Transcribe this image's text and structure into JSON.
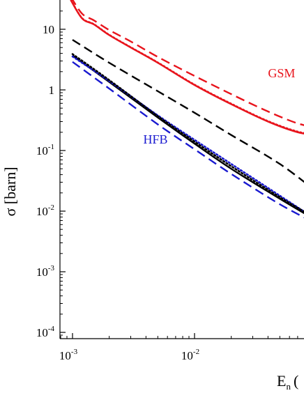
{
  "chart_data": {
    "type": "line",
    "xlabel": "E",
    "xlabel_sub": "n",
    "xlabel_tail": "(",
    "ylabel": "σ [barn]",
    "xscale": "log",
    "yscale": "log",
    "xlim": [
      0.00089,
      0.11
    ],
    "ylim": [
      9e-05,
      35
    ],
    "x_ticks": [
      {
        "value": 0.001,
        "base": "10",
        "exp": "-3"
      },
      {
        "value": 0.01,
        "base": "10",
        "exp": "-2"
      }
    ],
    "y_ticks": [
      {
        "value": 10,
        "base": "10",
        "exp": ""
      },
      {
        "value": 1,
        "base": "1",
        "exp": ""
      },
      {
        "value": 0.1,
        "base": "10",
        "exp": "-1"
      },
      {
        "value": 0.01,
        "base": "10",
        "exp": "-2"
      },
      {
        "value": 0.001,
        "base": "10",
        "exp": "-3"
      },
      {
        "value": 0.0001,
        "base": "10",
        "exp": "-4"
      }
    ],
    "annotations": [
      {
        "text": "GSM",
        "x": 0.04,
        "y": 1.6,
        "color": "#e8141c"
      },
      {
        "text": "HFB",
        "x": 0.0038,
        "y": 0.13,
        "color": "#1a1ad0"
      }
    ],
    "series": [
      {
        "color": "#e8141c",
        "style": "solid",
        "x": [
          0.00097,
          0.0012,
          0.0015,
          0.002,
          0.003,
          0.005,
          0.01,
          0.02,
          0.04,
          0.07,
          0.1
        ],
        "y": [
          30,
          15,
          12,
          8.0,
          5.0,
          2.8,
          1.2,
          0.58,
          0.3,
          0.2,
          0.18
        ]
      },
      {
        "color": "#e8141c",
        "style": "dotted",
        "x": [
          0.00097,
          0.0012,
          0.0015,
          0.002,
          0.003,
          0.005,
          0.01,
          0.02,
          0.04,
          0.07,
          0.1
        ],
        "y": [
          30.5,
          15.2,
          12.1,
          8.1,
          5.05,
          2.83,
          1.22,
          0.59,
          0.305,
          0.205,
          0.183
        ]
      },
      {
        "color": "#e8141c",
        "style": "dashed",
        "x": [
          0.00097,
          0.0012,
          0.0015,
          0.002,
          0.003,
          0.005,
          0.01,
          0.02,
          0.04,
          0.07,
          0.1
        ],
        "y": [
          34,
          18,
          14,
          9.7,
          6.3,
          3.5,
          1.7,
          0.85,
          0.44,
          0.28,
          0.24
        ]
      },
      {
        "color": "#000000",
        "style": "dashed",
        "x": [
          0.001,
          0.002,
          0.005,
          0.01,
          0.02,
          0.05,
          0.1
        ],
        "y": [
          6.7,
          2.8,
          0.95,
          0.42,
          0.18,
          0.06,
          0.021
        ]
      },
      {
        "color": "#000000",
        "style": "solid",
        "x": [
          0.001,
          0.002,
          0.005,
          0.01,
          0.02,
          0.05,
          0.1
        ],
        "y": [
          3.7,
          1.35,
          0.35,
          0.13,
          0.05,
          0.016,
          0.007
        ]
      },
      {
        "color": "#1a1ad0",
        "style": "dotted",
        "x": [
          0.001,
          0.002,
          0.005,
          0.01,
          0.02,
          0.05,
          0.1
        ],
        "y": [
          3.55,
          1.4,
          0.38,
          0.15,
          0.06,
          0.018,
          0.0072
        ]
      },
      {
        "color": "#000000",
        "style": "dotted",
        "x": [
          0.001,
          0.002,
          0.005,
          0.01,
          0.02,
          0.05,
          0.1
        ],
        "y": [
          3.9,
          1.45,
          0.37,
          0.14,
          0.055,
          0.017,
          0.0075
        ]
      },
      {
        "color": "#1a1ad0",
        "style": "dashed",
        "x": [
          0.001,
          0.002,
          0.005,
          0.01,
          0.02,
          0.05,
          0.1
        ],
        "y": [
          2.9,
          1.05,
          0.27,
          0.105,
          0.041,
          0.013,
          0.0062
        ]
      }
    ]
  }
}
